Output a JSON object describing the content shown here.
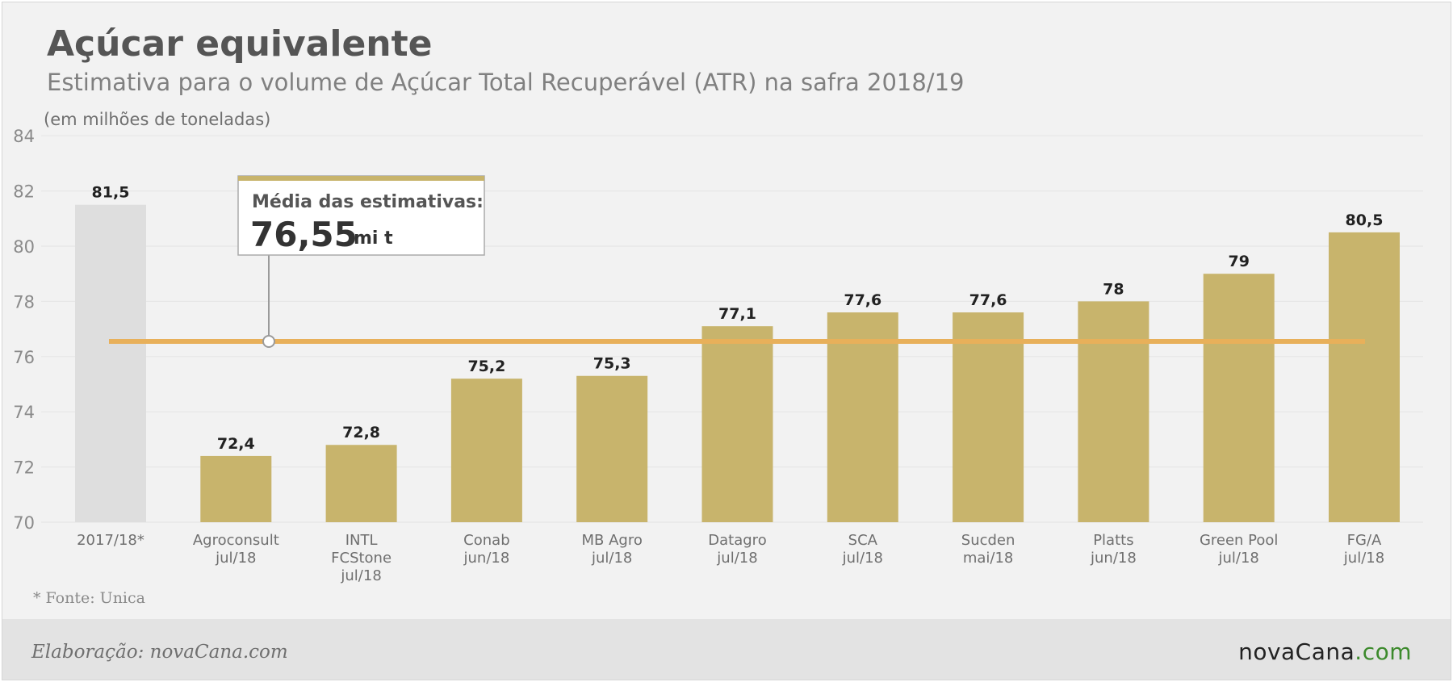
{
  "header": {
    "title": "Açúcar equivalente",
    "subtitle": "Estimativa para o volume de Açúcar Total Recuperável (ATR) na safra 2018/19",
    "unit_note": "(em milhões de toneladas)"
  },
  "chart_data": {
    "type": "bar",
    "title": "Açúcar equivalente",
    "subtitle": "Estimativa para o volume de Açúcar Total Recuperável (ATR) na safra 2018/19",
    "ylabel": "(em milhões de toneladas)",
    "ylim": [
      70,
      84
    ],
    "yticks": [
      70,
      72,
      74,
      76,
      78,
      80,
      82,
      84
    ],
    "grid": true,
    "categories": [
      [
        "2017/18*"
      ],
      [
        "Agroconsult",
        "jul/18"
      ],
      [
        "INTL",
        "FCStone",
        "jul/18"
      ],
      [
        "Conab",
        "jun/18"
      ],
      [
        "MB Agro",
        "jul/18"
      ],
      [
        "Datagro",
        "jul/18"
      ],
      [
        "SCA",
        "jul/18"
      ],
      [
        "Sucden",
        "mai/18"
      ],
      [
        "Platts",
        "jun/18"
      ],
      [
        "Green Pool",
        "jul/18"
      ],
      [
        "FG/A",
        "jul/18"
      ]
    ],
    "values": [
      81.5,
      72.4,
      72.8,
      75.2,
      75.3,
      77.1,
      77.6,
      77.6,
      78,
      79,
      80.5
    ],
    "value_labels": [
      "81,5",
      "72,4",
      "72,8",
      "75,2",
      "75,3",
      "77,1",
      "77,6",
      "77,6",
      "78",
      "79",
      "80,5"
    ],
    "average": {
      "value": 76.55,
      "label": "Média das estimativas:",
      "value_label": "76,55",
      "unit": "mi t"
    }
  },
  "colors": {
    "bar": "#c8b46c",
    "bar_previous": "#dedede",
    "average_line": "#e8b05a",
    "grid": "#e6e6e6"
  },
  "footer": {
    "source": "* Fonte: Unica",
    "credit": "Elaboração: novaCana.com",
    "logo_main": "novaCana",
    "logo_suffix": ".com"
  }
}
